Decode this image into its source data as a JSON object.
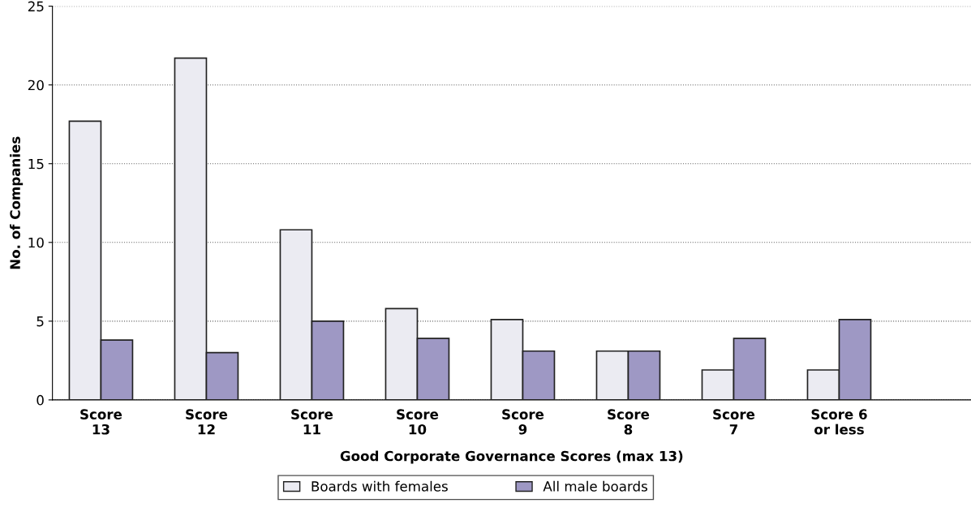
{
  "chart_data": {
    "type": "bar",
    "xlabel": "Good Corporate Governance Scores (max 13)",
    "ylabel": "No. of Companies",
    "categories": [
      "Score\n13",
      "Score\n12",
      "Score\n11",
      "Score\n10",
      "Score\n9",
      "Score\n8",
      "Score\n7",
      "Score 6\nor less"
    ],
    "series": [
      {
        "name": "Boards with females",
        "color": "#ebebf2",
        "values": [
          17.7,
          21.7,
          10.8,
          5.8,
          5.1,
          3.1,
          1.9,
          1.9
        ]
      },
      {
        "name": "All male boards",
        "color": "#9e98c4",
        "values": [
          3.8,
          3.0,
          5.0,
          3.9,
          3.1,
          3.1,
          3.9,
          5.1
        ]
      }
    ],
    "ylim": [
      0,
      25
    ],
    "yticks": [
      0,
      5,
      10,
      15,
      20,
      25
    ],
    "grid": "y",
    "legend": "bottom"
  }
}
